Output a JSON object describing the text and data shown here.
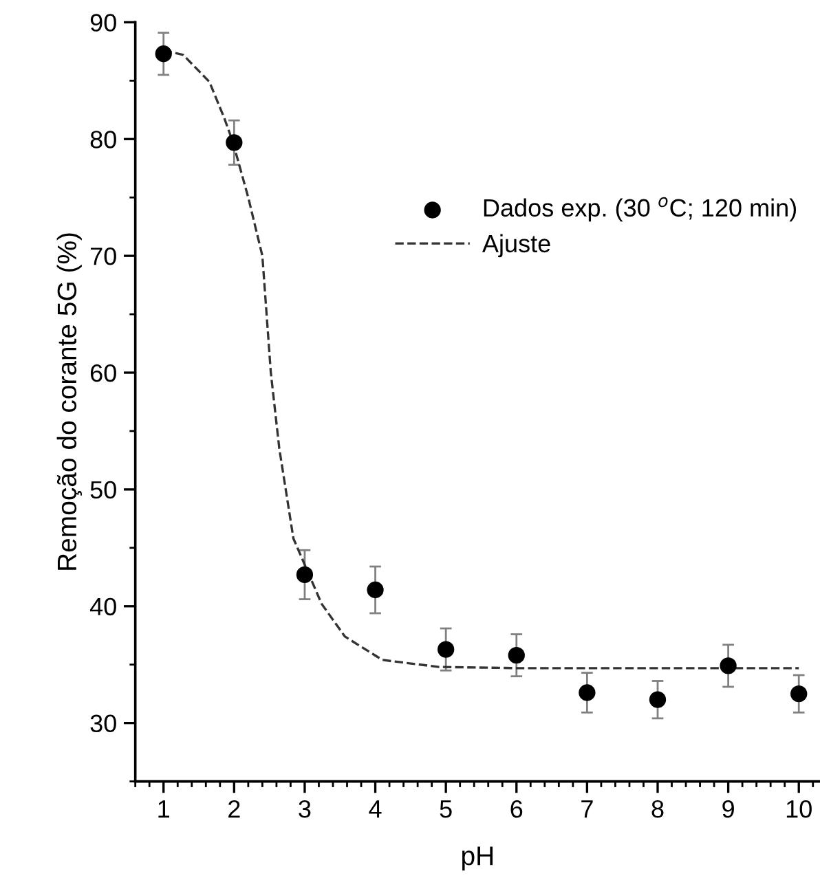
{
  "chart_data": {
    "type": "scatter",
    "xlabel": "pH",
    "ylabel": "Remoção do corante 5G (%)",
    "xlim": [
      0.6,
      10.3
    ],
    "xticks": [
      1,
      2,
      3,
      4,
      5,
      6,
      7,
      8,
      9,
      10
    ],
    "ylim": [
      25,
      90
    ],
    "yticks": [
      30,
      40,
      50,
      60,
      70,
      80,
      90
    ],
    "grid": false,
    "legend": "right",
    "series": [
      {
        "name": "Dados exp. (30 $^{o}$C; 120 min)",
        "color": "#000000",
        "marker": "circle",
        "x": [
          1,
          2,
          3,
          4,
          5,
          6,
          7,
          8,
          9,
          10
        ],
        "values": [
          87.3,
          79.7,
          42.7,
          41.4,
          36.3,
          35.8,
          32.6,
          32.0,
          34.9,
          32.5
        ],
        "errors": [
          1.8,
          1.9,
          2.1,
          2.0,
          1.8,
          1.8,
          1.7,
          1.6,
          1.8,
          1.6
        ]
      },
      {
        "name": "Ajuste",
        "type": "line",
        "color": "#333333",
        "line_style": "dashed",
        "x": [
          1,
          1.28,
          1.65,
          1.86,
          1.98,
          2.2,
          2.4,
          2.52,
          2.64,
          2.84,
          3.24,
          3.57,
          4.1,
          4.9,
          6,
          10
        ],
        "values": [
          87.6,
          87.2,
          84.9,
          81.8,
          79.8,
          75,
          70,
          60,
          53.5,
          45.8,
          40.2,
          37.4,
          35.4,
          34.8,
          34.7,
          34.7
        ]
      }
    ]
  }
}
